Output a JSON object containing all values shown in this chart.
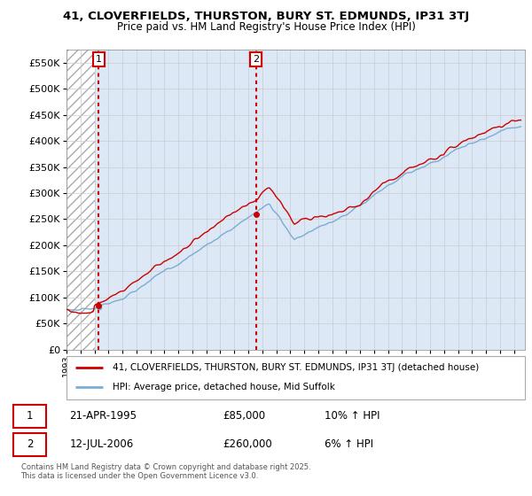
{
  "title_line1": "41, CLOVERFIELDS, THURSTON, BURY ST. EDMUNDS, IP31 3TJ",
  "title_line2": "Price paid vs. HM Land Registry's House Price Index (HPI)",
  "legend_line1": "41, CLOVERFIELDS, THURSTON, BURY ST. EDMUNDS, IP31 3TJ (detached house)",
  "legend_line2": "HPI: Average price, detached house, Mid Suffolk",
  "sale1_label": "1",
  "sale1_date": "21-APR-1995",
  "sale1_price": "£85,000",
  "sale1_hpi": "10% ↑ HPI",
  "sale2_label": "2",
  "sale2_date": "12-JUL-2006",
  "sale2_price": "£260,000",
  "sale2_hpi": "6% ↑ HPI",
  "footer": "Contains HM Land Registry data © Crown copyright and database right 2025.\nThis data is licensed under the Open Government Licence v3.0.",
  "price_color": "#cc0000",
  "hpi_color": "#7aadd4",
  "grid_color": "#cccccc",
  "bg_color": "#dce8f5",
  "ylim": [
    0,
    575000
  ],
  "yticks": [
    0,
    50000,
    100000,
    150000,
    200000,
    250000,
    300000,
    350000,
    400000,
    450000,
    500000,
    550000
  ],
  "xlim_start": 1993,
  "xlim_end": 2025.8,
  "hatch_end": 1995.0,
  "sale1_year": 1995.3,
  "sale1_value": 85000,
  "sale2_year": 2006.54,
  "sale2_value": 260000
}
